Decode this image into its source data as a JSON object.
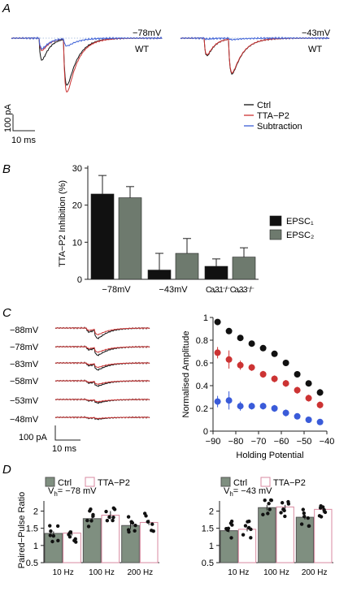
{
  "panels": {
    "a": "A",
    "b": "B",
    "c": "C",
    "d": "D"
  },
  "panel_a": {
    "left": {
      "voltage": "−78mV",
      "genotype": "WT"
    },
    "right": {
      "voltage": "−43mV",
      "genotype": "WT"
    },
    "legend": [
      "Ctrl",
      "TTA−P2",
      "Subtraction"
    ],
    "legend_colors": [
      "#111111",
      "#cc3333",
      "#3b5fd6"
    ],
    "scale": {
      "y": "100 pA",
      "x": "10 ms"
    }
  },
  "panel_c_traces": {
    "labels": [
      "−88mV",
      "−78mV",
      "−83mV",
      "−58mV",
      "−53mV",
      "−48mV"
    ],
    "scale": {
      "y": "100 pA",
      "x": "10 ms"
    }
  },
  "chart_data": [
    {
      "type": "bar",
      "panel": "B",
      "ylabel": "TTA−P2 Inhibition (%)",
      "ylim": [
        0,
        30
      ],
      "yticks": [
        0,
        10,
        20,
        30
      ],
      "categories": [
        "−78mV",
        "−43mV",
        "Caᵥ3.1⁻/⁻ Caᵥ3.3⁻/⁻"
      ],
      "series": [
        {
          "name": "EPSC₁",
          "color": "#111111",
          "values": [
            23,
            2.5,
            3.5
          ],
          "errors": [
            5,
            4.5,
            2
          ]
        },
        {
          "name": "EPSC₂",
          "color": "#6e7a6e",
          "values": [
            22,
            7,
            6
          ],
          "errors": [
            3,
            4,
            2.5
          ]
        }
      ],
      "legend": "right"
    },
    {
      "type": "scatter",
      "panel": "C",
      "xlabel": "Holding Potential",
      "ylabel": "Normalised Amplitude",
      "xlim": [
        -90,
        -40
      ],
      "ylim": [
        0,
        1
      ],
      "xticks": [
        -90,
        -80,
        -70,
        -60,
        -50,
        -40
      ],
      "yticks": [
        0,
        0.2,
        0.4,
        0.6,
        0.8,
        1
      ],
      "x": [
        -88,
        -83,
        -78,
        -73,
        -68,
        -63,
        -58,
        -53,
        -48,
        -43
      ],
      "series": [
        {
          "color": "#111111",
          "values": [
            0.96,
            0.88,
            0.82,
            0.77,
            0.73,
            0.68,
            0.6,
            0.5,
            0.42,
            0.34
          ],
          "errors": [
            0.02,
            0.02,
            0.02,
            0.02,
            0.02,
            0.02,
            0.02,
            0.02,
            0.02,
            0.03
          ]
        },
        {
          "color": "#cc3333",
          "values": [
            0.69,
            0.63,
            0.58,
            0.56,
            0.5,
            0.46,
            0.42,
            0.36,
            0.29,
            0.23
          ],
          "errors": [
            0.05,
            0.08,
            0.04,
            0.03,
            0.03,
            0.03,
            0.03,
            0.03,
            0.03,
            0.03
          ]
        },
        {
          "color": "#3a5bd9",
          "values": [
            0.26,
            0.27,
            0.22,
            0.22,
            0.22,
            0.2,
            0.16,
            0.13,
            0.1,
            0.08
          ],
          "errors": [
            0.05,
            0.08,
            0.04,
            0.03,
            0.03,
            0.03,
            0.03,
            0.02,
            0.02,
            0.02
          ]
        }
      ]
    },
    {
      "type": "bar",
      "panel": "D-left",
      "vh": "V",
      "vh_sub": "h",
      "vh_value": "= −78 mV",
      "ylabel": "Paired−Pulse Ratio",
      "ylim": [
        0.5,
        2.2
      ],
      "yticks": [
        0.5,
        1,
        1.5,
        2
      ],
      "categories": [
        "10 Hz",
        "100 Hz",
        "200 Hz"
      ],
      "series": [
        {
          "name": "Ctrl",
          "color": "#7f8f80",
          "values": [
            1.35,
            1.78,
            1.58
          ],
          "errors": [
            0.06,
            0.08,
            0.1
          ]
        },
        {
          "name": "TTA−P2",
          "color": "#d98aa0",
          "values": [
            1.36,
            1.88,
            1.67
          ],
          "errors": [
            0.07,
            0.12,
            0.08
          ]
        }
      ]
    },
    {
      "type": "bar",
      "panel": "D-right",
      "vh": "V",
      "vh_sub": "h",
      "vh_value": "= −43 mV",
      "ylim": [
        0.5,
        2.2
      ],
      "yticks": [
        0.5,
        1,
        1.5,
        2
      ],
      "categories": [
        "10 Hz",
        "100 Hz",
        "200 Hz"
      ],
      "series": [
        {
          "name": "Ctrl",
          "color": "#7f8f80",
          "values": [
            1.43,
            2.1,
            1.82
          ],
          "errors": [
            0.05,
            0.08,
            0.07
          ]
        },
        {
          "name": "TTA−P2",
          "color": "#d98aa0",
          "values": [
            1.47,
            2.12,
            2.05
          ],
          "errors": [
            0.06,
            0.06,
            0.1
          ]
        }
      ]
    }
  ]
}
